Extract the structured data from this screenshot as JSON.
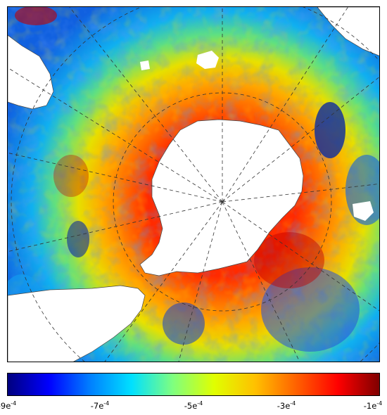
{
  "map": {
    "projection": "south-polar-stereographic",
    "graticule": "dashed",
    "colormap": [
      "#00007f",
      "#0000ff",
      "#0080ff",
      "#00e0ff",
      "#7fff7f",
      "#e0ff00",
      "#ffc000",
      "#ff6000",
      "#ff0000",
      "#7f0000"
    ]
  },
  "colorbar": {
    "min": -0.0009,
    "max": -0.0001,
    "ticks": [
      {
        "base": "-9e",
        "exp": "-4"
      },
      {
        "base": "-7e",
        "exp": "-4"
      },
      {
        "base": "-5e",
        "exp": "-4"
      },
      {
        "base": "-3e",
        "exp": "-4"
      },
      {
        "base": "-1e",
        "exp": "-4"
      }
    ]
  }
}
